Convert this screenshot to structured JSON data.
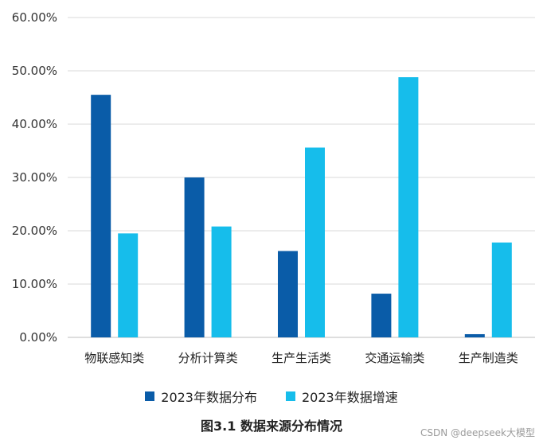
{
  "chart_data": {
    "type": "bar",
    "categories": [
      "物联感知类",
      "分析计算类",
      "生产生活类",
      "交通运输类",
      "生产制造类"
    ],
    "series": [
      {
        "name": "2023年数据分布",
        "color": "#0A5CA8",
        "values": [
          45.5,
          30.0,
          16.2,
          8.2,
          0.6
        ]
      },
      {
        "name": "2023年数据增速",
        "color": "#16BDEB",
        "values": [
          19.5,
          20.8,
          35.6,
          48.8,
          17.8
        ]
      }
    ],
    "y_ticks": [
      "0.00%",
      "10.00%",
      "20.00%",
      "30.00%",
      "40.00%",
      "50.00%",
      "60.00%"
    ],
    "ylim": [
      0,
      60
    ],
    "grid": true,
    "legend_position": "bottom",
    "title": "图3.1 数据来源分布情况"
  },
  "watermark": "CSDN @deepseek大模型"
}
